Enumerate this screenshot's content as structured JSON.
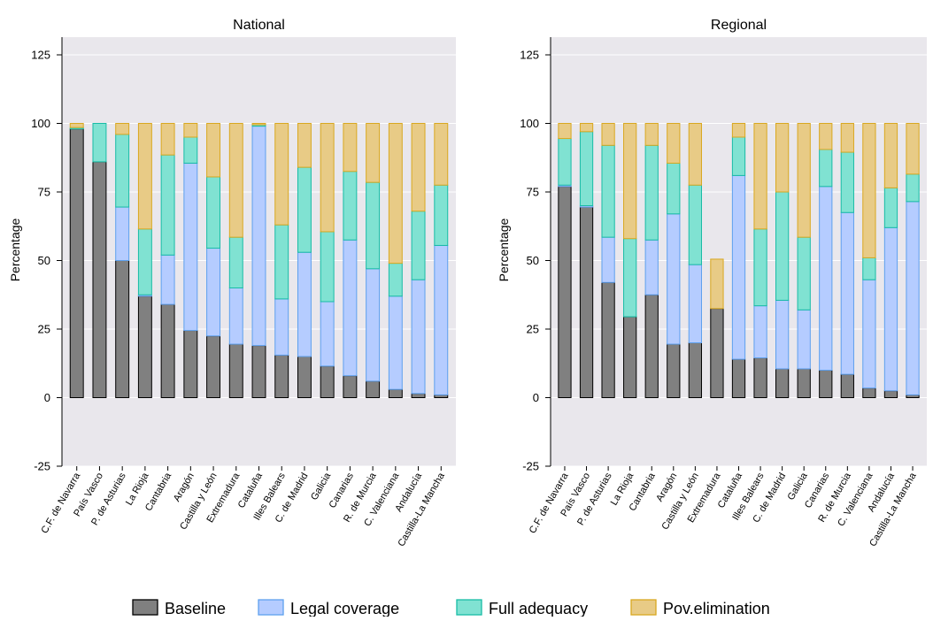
{
  "colors": {
    "baseline_fill": "#808080",
    "baseline_stroke": "#000000",
    "legal_fill": "#b5ccff",
    "legal_stroke": "#5ea0ee",
    "adequacy_fill": "#80e2d2",
    "adequacy_stroke": "#18bca6",
    "pov_fill": "#e8cb86",
    "pov_stroke": "#d9a820",
    "panel_bg": "#e9e7ec",
    "grid": "#ffffff"
  },
  "ylabel": "Percentage",
  "yticks": [
    "-25",
    "0",
    "25",
    "50",
    "75",
    "100",
    "125"
  ],
  "legend": [
    "Baseline",
    "Legal coverage",
    "Full adequacy",
    "Pov.elimination"
  ],
  "chart_data": [
    {
      "type": "bar",
      "stacked": true,
      "title": "National",
      "ylabel": "Percentage",
      "ylim": [
        -25,
        125
      ],
      "categories": [
        "C.F. de Navarra",
        "País Vasco",
        "P. de Asturias",
        "La Rioja",
        "Cantabria",
        "Aragón",
        "Castilla y León",
        "Extremadura",
        "Cataluña",
        "Illes Balears",
        "C. de Madrid",
        "Galicia",
        "Canarias",
        "R. de Murcia",
        "C. Valenciana",
        "Andalucía",
        "Castilla-La Mancha"
      ],
      "series": [
        {
          "name": "Baseline",
          "values": [
            98,
            86,
            50,
            37,
            34,
            24.5,
            22.5,
            19.5,
            19,
            15.5,
            15,
            11.5,
            8,
            6,
            3,
            1.5,
            1
          ]
        },
        {
          "name": "Legal coverage",
          "values": [
            0,
            0,
            19.5,
            0.5,
            18,
            61,
            32,
            20.5,
            80,
            20.5,
            38,
            23.5,
            49.5,
            41,
            34,
            41.5,
            54.5
          ]
        },
        {
          "name": "Full adequacy",
          "values": [
            0.5,
            14,
            26.5,
            24,
            36.5,
            9.5,
            26,
            18.5,
            0.5,
            27,
            31,
            25.5,
            25,
            31.5,
            12,
            25,
            22
          ]
        },
        {
          "name": "Pov.elimination",
          "values": [
            1.5,
            0,
            4,
            38.5,
            11.5,
            5,
            19.5,
            41.5,
            0.5,
            37,
            16,
            39.5,
            17.5,
            21.5,
            51,
            32,
            22.5
          ]
        }
      ]
    },
    {
      "type": "bar",
      "stacked": true,
      "title": "Regional",
      "ylabel": "Percentage",
      "ylim": [
        -25,
        125
      ],
      "categories": [
        "C.F. de Navarra",
        "País Vasco",
        "P. de Asturias",
        "La Rioja",
        "Cantabria",
        "Aragón",
        "Castilla y León",
        "Extremadura",
        "Cataluña",
        "Illes Balears",
        "C. de Madrid",
        "Galicia",
        "Canarias",
        "R. de Murcia",
        "C. Valenciana",
        "Andalucía",
        "Castilla-La Mancha"
      ],
      "series": [
        {
          "name": "Baseline",
          "values": [
            77,
            69.5,
            42,
            29.5,
            37.5,
            19.5,
            20,
            32.5,
            14,
            14.5,
            10.5,
            10.5,
            10,
            8.5,
            3.5,
            2.5,
            1
          ]
        },
        {
          "name": "Legal coverage",
          "values": [
            0.5,
            0.5,
            16.5,
            0,
            20,
            47.5,
            28.5,
            0,
            67,
            19,
            25,
            21.5,
            67,
            59,
            39.5,
            59.5,
            70.5
          ]
        },
        {
          "name": "Full adequacy",
          "values": [
            17,
            27,
            33.5,
            28.5,
            34.5,
            18.5,
            29,
            0,
            14,
            28,
            39.5,
            26.5,
            13.5,
            22,
            8,
            14.5,
            10
          ]
        },
        {
          "name": "Pov.elimination",
          "values": [
            5.5,
            3,
            8,
            42,
            8,
            14.5,
            22.5,
            18,
            5,
            38.5,
            25,
            41.5,
            9.5,
            10.5,
            49,
            23.5,
            18.5
          ]
        }
      ]
    }
  ]
}
